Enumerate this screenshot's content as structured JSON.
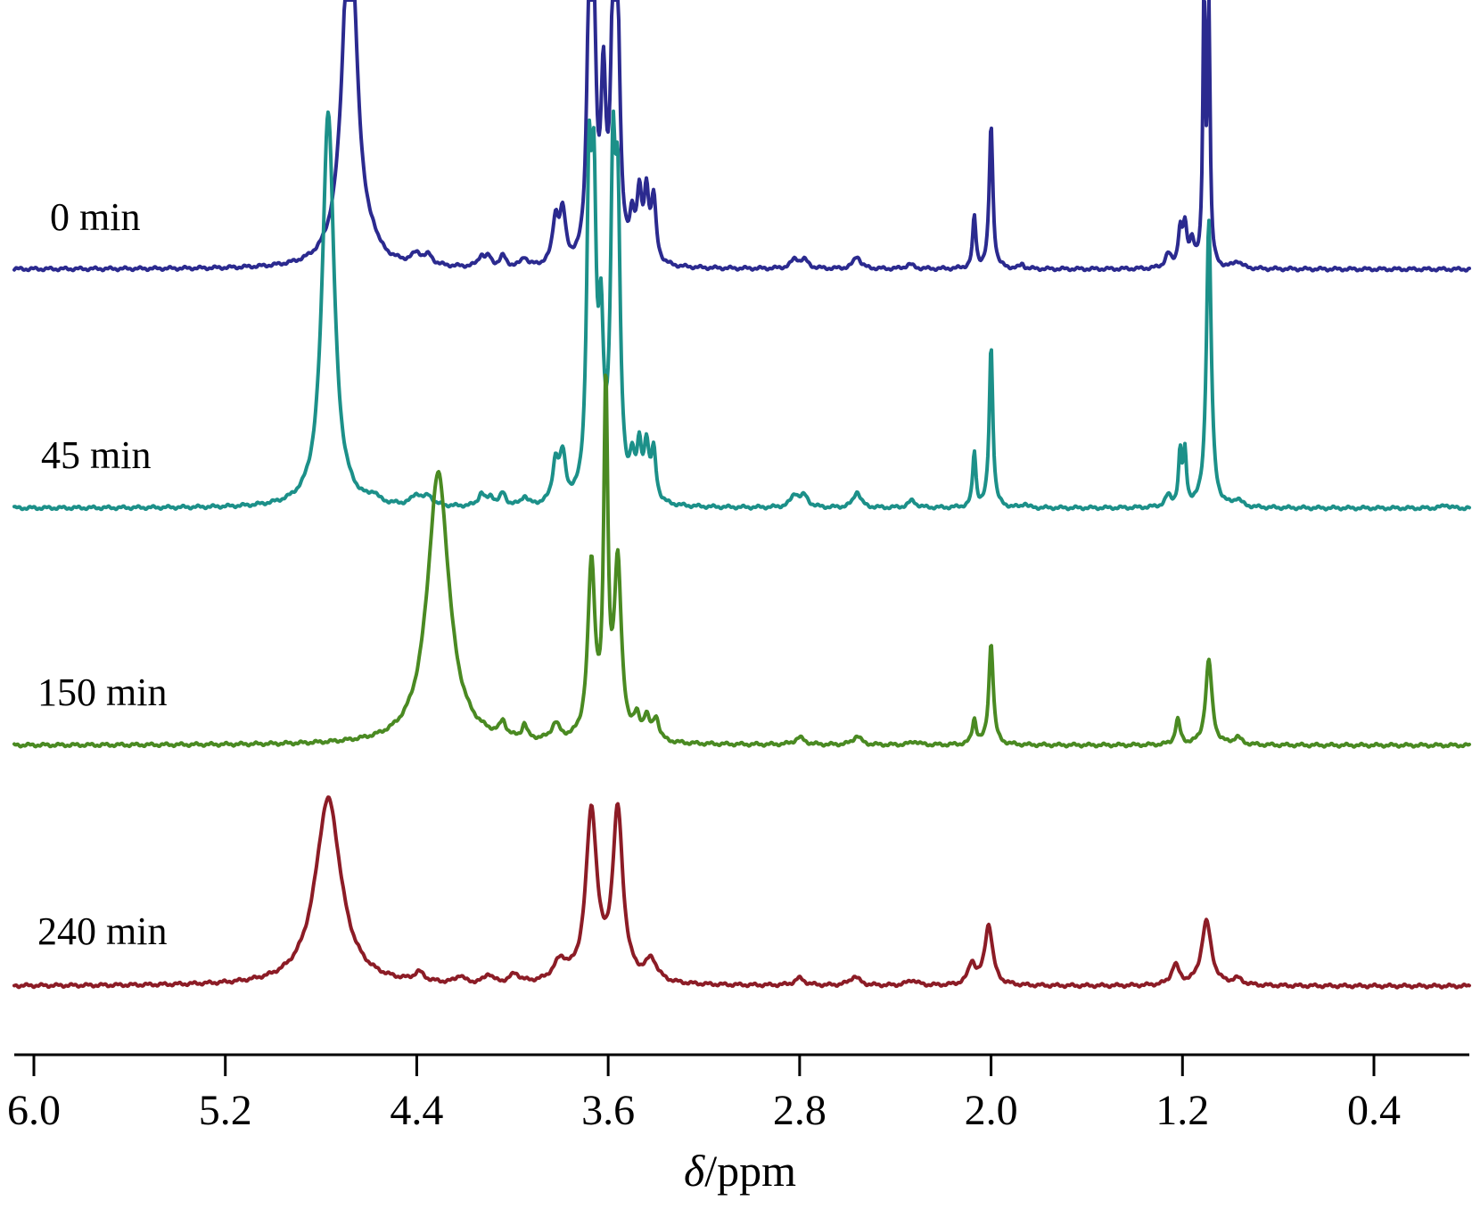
{
  "chart_data": {
    "type": "line",
    "xlabel_symbol": "δ",
    "xlabel_unit": "/ppm",
    "xlim": [
      6.1,
      -0.1
    ],
    "xticks": [
      6.0,
      5.2,
      4.4,
      3.6,
      2.8,
      2.0,
      1.2,
      0.4
    ],
    "xtick_labels": [
      "6.0",
      "5.2",
      "4.4",
      "3.6",
      "2.8",
      "2.0",
      "1.2",
      "0.4"
    ],
    "series": [
      {
        "name": "0 min",
        "color": "#2b2a8f",
        "peaks": [
          {
            "shift": 4.68,
            "height": 420,
            "width": 0.035
          },
          {
            "shift": 4.58,
            "height": 8,
            "width": 0.02
          },
          {
            "shift": 4.4,
            "height": 12,
            "width": 0.025
          },
          {
            "shift": 4.35,
            "height": 10,
            "width": 0.02
          },
          {
            "shift": 4.13,
            "height": 12,
            "width": 0.015
          },
          {
            "shift": 4.1,
            "height": 10,
            "width": 0.015
          },
          {
            "shift": 4.04,
            "height": 12,
            "width": 0.015
          },
          {
            "shift": 3.95,
            "height": 10,
            "width": 0.015
          },
          {
            "shift": 3.82,
            "height": 50,
            "width": 0.015
          },
          {
            "shift": 3.79,
            "height": 55,
            "width": 0.015
          },
          {
            "shift": 3.68,
            "height": 260,
            "width": 0.012
          },
          {
            "shift": 3.66,
            "height": 240,
            "width": 0.012
          },
          {
            "shift": 3.62,
            "height": 190,
            "width": 0.012
          },
          {
            "shift": 3.58,
            "height": 250,
            "width": 0.012
          },
          {
            "shift": 3.56,
            "height": 240,
            "width": 0.012
          },
          {
            "shift": 3.5,
            "height": 45,
            "width": 0.012
          },
          {
            "shift": 3.47,
            "height": 70,
            "width": 0.012
          },
          {
            "shift": 3.44,
            "height": 75,
            "width": 0.012
          },
          {
            "shift": 3.41,
            "height": 70,
            "width": 0.012
          },
          {
            "shift": 2.82,
            "height": 10,
            "width": 0.02
          },
          {
            "shift": 2.78,
            "height": 9,
            "width": 0.02
          },
          {
            "shift": 2.56,
            "height": 14,
            "width": 0.018
          },
          {
            "shift": 2.34,
            "height": 5,
            "width": 0.02
          },
          {
            "shift": 2.07,
            "height": 58,
            "width": 0.008
          },
          {
            "shift": 2.0,
            "height": 162,
            "width": 0.009
          },
          {
            "shift": 1.87,
            "height": 5,
            "width": 0.01
          },
          {
            "shift": 1.26,
            "height": 15,
            "width": 0.015
          },
          {
            "shift": 1.21,
            "height": 40,
            "width": 0.01
          },
          {
            "shift": 1.19,
            "height": 42,
            "width": 0.01
          },
          {
            "shift": 1.16,
            "height": 28,
            "width": 0.012
          },
          {
            "shift": 1.11,
            "height": 300,
            "width": 0.006
          },
          {
            "shift": 1.09,
            "height": 300,
            "width": 0.006
          },
          {
            "shift": 0.97,
            "height": 8,
            "width": 0.02
          }
        ]
      },
      {
        "name": "45 min",
        "color": "#1c9089",
        "peaks": [
          {
            "shift": 4.77,
            "height": 445,
            "width": 0.03
          },
          {
            "shift": 4.58,
            "height": 8,
            "width": 0.02
          },
          {
            "shift": 4.4,
            "height": 12,
            "width": 0.025
          },
          {
            "shift": 4.35,
            "height": 10,
            "width": 0.02
          },
          {
            "shift": 4.13,
            "height": 14,
            "width": 0.015
          },
          {
            "shift": 4.09,
            "height": 10,
            "width": 0.015
          },
          {
            "shift": 4.04,
            "height": 14,
            "width": 0.015
          },
          {
            "shift": 3.95,
            "height": 10,
            "width": 0.015
          },
          {
            "shift": 3.82,
            "height": 45,
            "width": 0.015
          },
          {
            "shift": 3.79,
            "height": 50,
            "width": 0.015
          },
          {
            "shift": 3.68,
            "height": 330,
            "width": 0.012
          },
          {
            "shift": 3.66,
            "height": 300,
            "width": 0.012
          },
          {
            "shift": 3.63,
            "height": 170,
            "width": 0.012
          },
          {
            "shift": 3.58,
            "height": 340,
            "width": 0.012
          },
          {
            "shift": 3.56,
            "height": 300,
            "width": 0.012
          },
          {
            "shift": 3.5,
            "height": 40,
            "width": 0.012
          },
          {
            "shift": 3.47,
            "height": 55,
            "width": 0.012
          },
          {
            "shift": 3.44,
            "height": 60,
            "width": 0.012
          },
          {
            "shift": 3.41,
            "height": 55,
            "width": 0.012
          },
          {
            "shift": 2.82,
            "height": 14,
            "width": 0.02
          },
          {
            "shift": 2.78,
            "height": 12,
            "width": 0.02
          },
          {
            "shift": 2.56,
            "height": 18,
            "width": 0.018
          },
          {
            "shift": 2.33,
            "height": 8,
            "width": 0.02
          },
          {
            "shift": 2.07,
            "height": 62,
            "width": 0.008
          },
          {
            "shift": 2.0,
            "height": 182,
            "width": 0.009
          },
          {
            "shift": 1.86,
            "height": 5,
            "width": 0.01
          },
          {
            "shift": 1.26,
            "height": 12,
            "width": 0.015
          },
          {
            "shift": 1.21,
            "height": 58,
            "width": 0.008
          },
          {
            "shift": 1.19,
            "height": 58,
            "width": 0.008
          },
          {
            "shift": 1.09,
            "height": 322,
            "width": 0.012
          },
          {
            "shift": 0.97,
            "height": 8,
            "width": 0.02
          },
          {
            "shift": 0.1,
            "height": 4,
            "width": 0.015
          }
        ]
      },
      {
        "name": "150 min",
        "color": "#4a8a22",
        "peaks": [
          {
            "shift": 4.31,
            "height": 305,
            "width": 0.055
          },
          {
            "shift": 4.04,
            "height": 16,
            "width": 0.015
          },
          {
            "shift": 3.95,
            "height": 16,
            "width": 0.012
          },
          {
            "shift": 3.82,
            "height": 18,
            "width": 0.02
          },
          {
            "shift": 3.67,
            "height": 195,
            "width": 0.018
          },
          {
            "shift": 3.61,
            "height": 385,
            "width": 0.01
          },
          {
            "shift": 3.56,
            "height": 195,
            "width": 0.018
          },
          {
            "shift": 3.48,
            "height": 22,
            "width": 0.015
          },
          {
            "shift": 3.44,
            "height": 24,
            "width": 0.015
          },
          {
            "shift": 3.4,
            "height": 25,
            "width": 0.015
          },
          {
            "shift": 2.8,
            "height": 8,
            "width": 0.025
          },
          {
            "shift": 2.56,
            "height": 10,
            "width": 0.02
          },
          {
            "shift": 2.32,
            "height": 4,
            "width": 0.02
          },
          {
            "shift": 2.07,
            "height": 28,
            "width": 0.01
          },
          {
            "shift": 2.0,
            "height": 115,
            "width": 0.011
          },
          {
            "shift": 1.22,
            "height": 28,
            "width": 0.012
          },
          {
            "shift": 1.09,
            "height": 95,
            "width": 0.016
          },
          {
            "shift": 0.97,
            "height": 8,
            "width": 0.02
          }
        ]
      },
      {
        "name": "240 min",
        "color": "#8c1c26",
        "peaks": [
          {
            "shift": 4.77,
            "height": 210,
            "width": 0.065
          },
          {
            "shift": 4.39,
            "height": 10,
            "width": 0.025
          },
          {
            "shift": 4.22,
            "height": 8,
            "width": 0.02
          },
          {
            "shift": 4.1,
            "height": 10,
            "width": 0.02
          },
          {
            "shift": 3.99,
            "height": 10,
            "width": 0.025
          },
          {
            "shift": 3.8,
            "height": 22,
            "width": 0.035
          },
          {
            "shift": 3.67,
            "height": 190,
            "width": 0.028
          },
          {
            "shift": 3.56,
            "height": 190,
            "width": 0.026
          },
          {
            "shift": 3.42,
            "height": 24,
            "width": 0.03
          },
          {
            "shift": 2.8,
            "height": 8,
            "width": 0.025
          },
          {
            "shift": 2.57,
            "height": 10,
            "width": 0.025
          },
          {
            "shift": 2.33,
            "height": 6,
            "width": 0.025
          },
          {
            "shift": 2.08,
            "height": 24,
            "width": 0.018
          },
          {
            "shift": 2.01,
            "height": 68,
            "width": 0.02
          },
          {
            "shift": 1.23,
            "height": 22,
            "width": 0.02
          },
          {
            "shift": 1.1,
            "height": 72,
            "width": 0.025
          },
          {
            "shift": 0.97,
            "height": 7,
            "width": 0.025
          }
        ]
      }
    ]
  }
}
